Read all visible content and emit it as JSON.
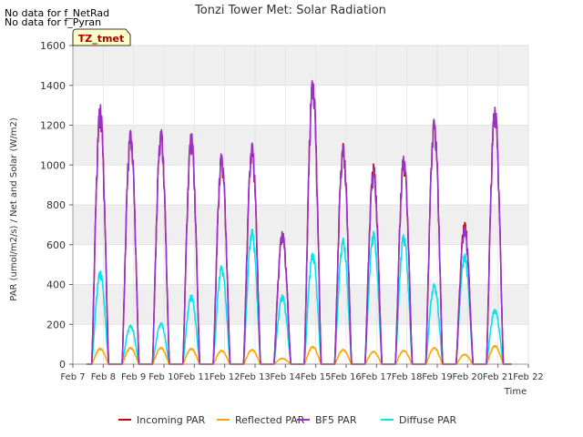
{
  "notes": [
    "No data for f_NetRad",
    "No data for f_Pyran"
  ],
  "chart_data": {
    "type": "line",
    "title": "Tonzi Tower Met: Solar Radiation",
    "xlabel": "Time",
    "ylabel": "PAR (umol/m2/s) / Net and Solar (W/m2)",
    "ylim": [
      0,
      1600
    ],
    "xlim": [
      7,
      22
    ],
    "yticks": [
      0,
      200,
      400,
      600,
      800,
      1000,
      1200,
      1400,
      1600
    ],
    "xticks": [
      {
        "pos": 7,
        "label": "Feb 7"
      },
      {
        "pos": 8,
        "label": "Feb 8"
      },
      {
        "pos": 9,
        "label": "Feb 9"
      },
      {
        "pos": 10,
        "label": "Feb 10"
      },
      {
        "pos": 11,
        "label": "Feb 11"
      },
      {
        "pos": 12,
        "label": "Feb 12"
      },
      {
        "pos": 13,
        "label": "Feb 13"
      },
      {
        "pos": 14,
        "label": "Feb 14"
      },
      {
        "pos": 15,
        "label": "Feb 15"
      },
      {
        "pos": 16,
        "label": "Feb 16"
      },
      {
        "pos": 17,
        "label": "Feb 17"
      },
      {
        "pos": 18,
        "label": "Feb 18"
      },
      {
        "pos": 19,
        "label": "Feb 19"
      },
      {
        "pos": 20,
        "label": "Feb 20"
      },
      {
        "pos": 21,
        "label": "Feb 21"
      },
      {
        "pos": 22,
        "label": "Feb 22"
      }
    ],
    "badge": "TZ_tmet",
    "grid": true,
    "legend_position": "bottom",
    "series": [
      {
        "name": "Incoming PAR",
        "color": "#cc0000",
        "peaks": [
          [
            7.9,
            1300
          ],
          [
            8.9,
            1190
          ],
          [
            9.9,
            1190
          ],
          [
            10.9,
            1170
          ],
          [
            11.9,
            1060
          ],
          [
            12.9,
            1120
          ],
          [
            13.9,
            670
          ],
          [
            14.9,
            1450
          ],
          [
            15.9,
            1120
          ],
          [
            16.9,
            1010
          ],
          [
            17.9,
            1050
          ],
          [
            18.9,
            1250
          ],
          [
            19.9,
            720
          ],
          [
            20.9,
            1310
          ]
        ]
      },
      {
        "name": "Reflected PAR",
        "color": "#ffa500",
        "peaks": [
          [
            7.9,
            80
          ],
          [
            8.9,
            85
          ],
          [
            9.9,
            85
          ],
          [
            10.9,
            80
          ],
          [
            11.9,
            70
          ],
          [
            12.9,
            75
          ],
          [
            13.9,
            30
          ],
          [
            14.9,
            90
          ],
          [
            15.9,
            75
          ],
          [
            16.9,
            65
          ],
          [
            17.9,
            70
          ],
          [
            18.9,
            85
          ],
          [
            19.9,
            50
          ],
          [
            20.9,
            95
          ]
        ]
      },
      {
        "name": "BF5 PAR",
        "color": "#9932cc",
        "peaks": [
          [
            7.9,
            1310
          ],
          [
            8.9,
            1195
          ],
          [
            9.9,
            1195
          ],
          [
            10.9,
            1170
          ],
          [
            11.9,
            1070
          ],
          [
            12.9,
            1130
          ],
          [
            13.9,
            670
          ],
          [
            14.9,
            1455
          ],
          [
            15.9,
            1110
          ],
          [
            16.9,
            990
          ],
          [
            17.9,
            1060
          ],
          [
            18.9,
            1250
          ],
          [
            19.9,
            700
          ],
          [
            20.9,
            1310
          ]
        ]
      },
      {
        "name": "Diffuse PAR",
        "color": "#00e5ee",
        "peaks": [
          [
            7.9,
            470
          ],
          [
            8.9,
            200
          ],
          [
            9.9,
            210
          ],
          [
            10.9,
            350
          ],
          [
            11.9,
            500
          ],
          [
            12.9,
            690
          ],
          [
            13.9,
            350
          ],
          [
            14.9,
            570
          ],
          [
            15.9,
            640
          ],
          [
            16.9,
            670
          ],
          [
            17.9,
            660
          ],
          [
            18.9,
            410
          ],
          [
            19.9,
            560
          ],
          [
            20.9,
            280
          ]
        ]
      }
    ]
  }
}
